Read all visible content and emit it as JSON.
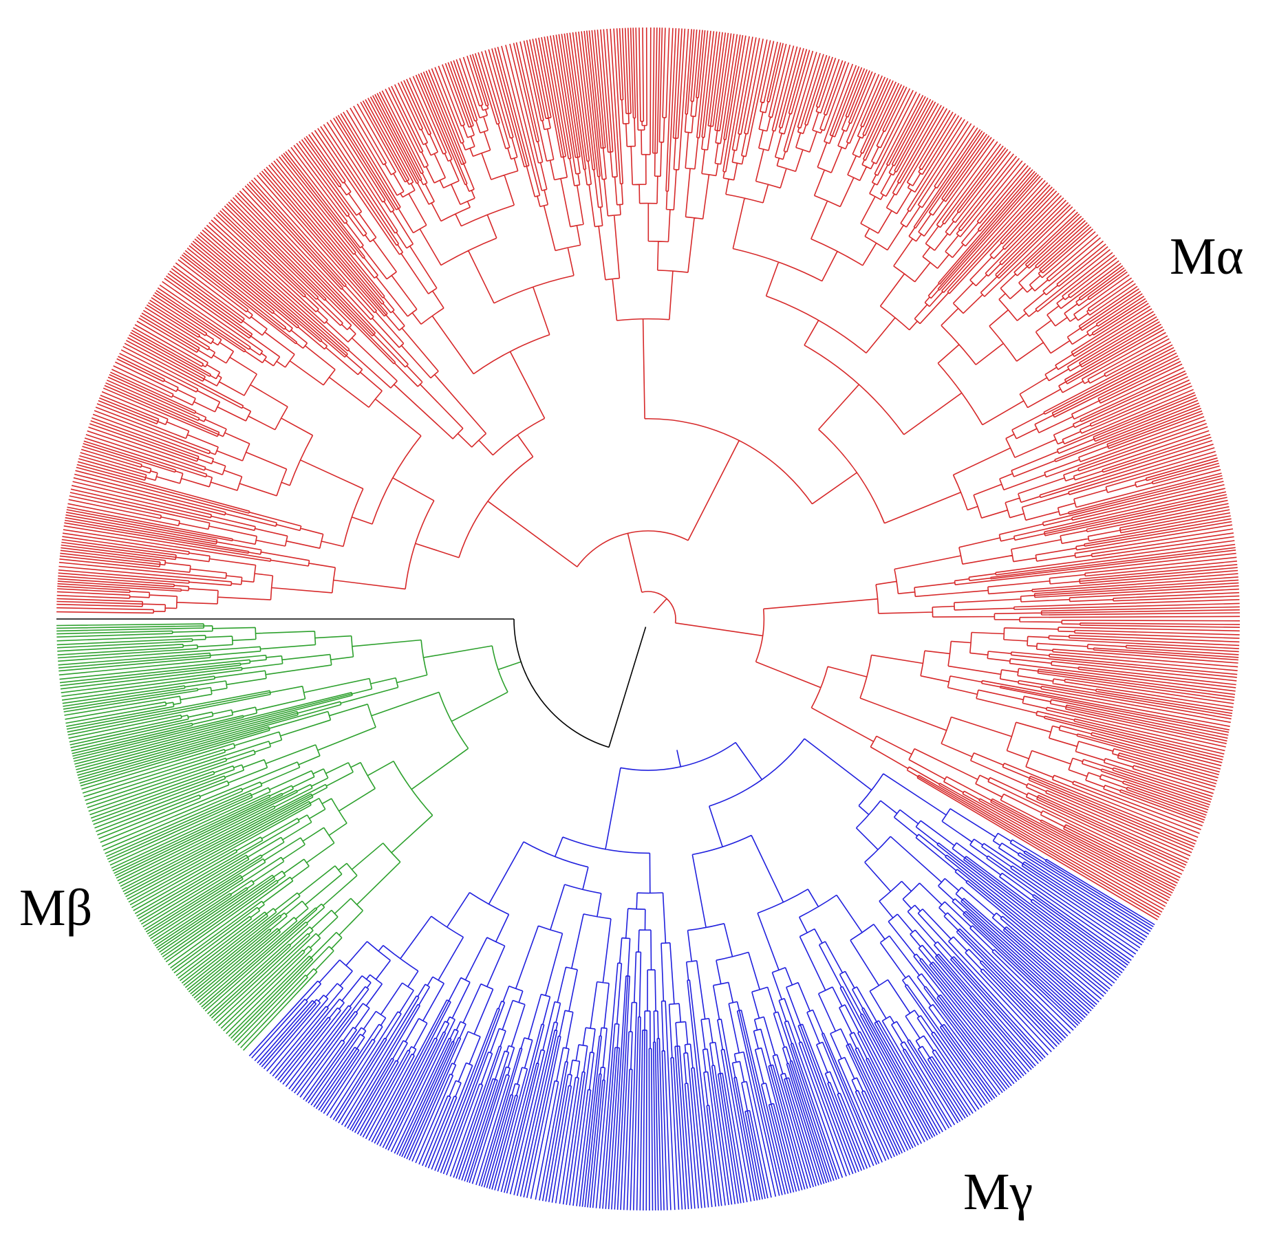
{
  "labels": {
    "alpha": "Mα",
    "beta": "Mβ",
    "gamma": "Mγ"
  }
}
